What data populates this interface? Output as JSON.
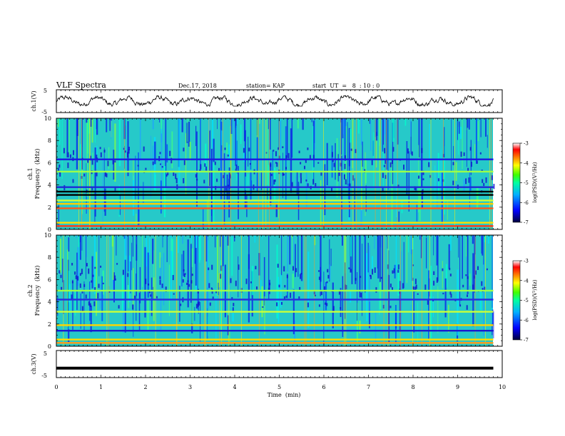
{
  "header": {
    "title": "VLF Spectra",
    "date": "Dec.17, 2018",
    "station": "station= KAP",
    "start_ut": "start  UT  =   8  : 10 : 0"
  },
  "chart_data": [
    {
      "type": "line",
      "panel": "ch.1(V)",
      "ylabel": "ch.1(V)",
      "ylim": [
        -5,
        5
      ],
      "yticks": [
        "5",
        "-5"
      ],
      "x_unit": "min",
      "x_range": [
        0,
        10
      ],
      "data_end_x": 9.8,
      "series": [
        {
          "description_free": true,
          "mean": 0.0,
          "amplitude_approx": 1.5
        }
      ]
    },
    {
      "type": "heatmap",
      "panel": "ch.1 spectrogram",
      "ylabel_line1": "ch.1",
      "ylabel_line2": "Frequency  (kHz)",
      "ylim": [
        0,
        10
      ],
      "yticks": [
        "0",
        "2",
        "4",
        "6",
        "8",
        "10"
      ],
      "x_range": [
        0,
        10
      ],
      "data_end_x": 9.8,
      "bands_khz": [
        {
          "f": 0.3,
          "color": "#ff3b1a"
        },
        {
          "f": 0.6,
          "color": "#ffdd00"
        },
        {
          "f": 1.9,
          "color": "#ff5a1a"
        },
        {
          "f": 2.3,
          "color": "#ffd000"
        },
        {
          "f": 2.6,
          "color": "#c9ff3a"
        },
        {
          "f": 3.1,
          "color": "#000000"
        },
        {
          "f": 3.4,
          "color": "#000000"
        },
        {
          "f": 3.8,
          "color": "#1e2bd6"
        },
        {
          "f": 5.2,
          "color": "#9cff4a"
        },
        {
          "f": 6.3,
          "color": "#1a1ae0"
        }
      ],
      "colorbar": {
        "label": "log(PSD)(V²/Hz)",
        "ticks": [
          "-3",
          "-4",
          "-5",
          "-6",
          "-7"
        ],
        "range": [
          -7,
          -3
        ]
      }
    },
    {
      "type": "heatmap",
      "panel": "ch.2 spectrogram",
      "ylabel_line1": "ch.2",
      "ylabel_line2": "Frequency  (kHz)",
      "ylim": [
        0,
        10
      ],
      "yticks": [
        "0",
        "2",
        "4",
        "6",
        "8",
        "10"
      ],
      "x_range": [
        0,
        10
      ],
      "data_end_x": 9.8,
      "bands_khz": [
        {
          "f": 0.3,
          "color": "#ff9a1a"
        },
        {
          "f": 0.6,
          "color": "#ffdd00"
        },
        {
          "f": 1.4,
          "color": "#1a1ad0"
        },
        {
          "f": 1.9,
          "color": "#ffd400"
        },
        {
          "f": 3.1,
          "color": "#c9ff3a"
        },
        {
          "f": 4.2,
          "color": "#2a2ae0"
        },
        {
          "f": 5.0,
          "color": "#9cff4a"
        }
      ],
      "colorbar": {
        "label": "log(PSD)(V²/Hz)",
        "ticks": [
          "-3",
          "-4",
          "-5",
          "-6",
          "-7"
        ],
        "range": [
          -7,
          -3
        ]
      }
    },
    {
      "type": "line",
      "panel": "ch.3(V)",
      "ylabel": "ch.3(V)",
      "ylim": [
        -5,
        5
      ],
      "yticks": [
        "5",
        "-5"
      ],
      "x_range": [
        0,
        10
      ],
      "data_end_x": 9.8,
      "series": [
        {
          "constant_value": -1.5
        }
      ]
    }
  ],
  "x_axis": {
    "label": "Time  (min)",
    "ticks": [
      "0",
      "1",
      "2",
      "3",
      "4",
      "5",
      "6",
      "7",
      "8",
      "9",
      "10"
    ]
  },
  "colors": {
    "colormap": [
      "#00003c",
      "#0000ff",
      "#00b0ff",
      "#00ffa0",
      "#40ff00",
      "#ffff00",
      "#ff8000",
      "#ff0000",
      "#ffffff"
    ]
  }
}
